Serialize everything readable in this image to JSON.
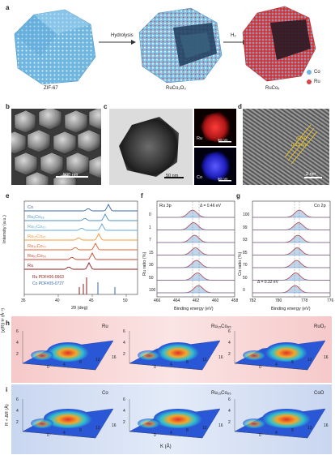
{
  "panel_letters": [
    "a",
    "b",
    "c",
    "d",
    "e",
    "f",
    "g",
    "h",
    "i"
  ],
  "panel_a": {
    "step1_label": "Hydrolysis",
    "step2_label": "H₂",
    "structures": [
      "ZIF-67",
      "RuCo₂O₃",
      "RuCoₓ"
    ],
    "legend": [
      {
        "label": "Co",
        "color": "#6fb6e0"
      },
      {
        "label": "Ru",
        "color": "#d9434a"
      }
    ]
  },
  "panel_b": {
    "scale_bar": "500 nm"
  },
  "panel_c": {
    "scale_bar": "50 nm",
    "map_labels": [
      "Ru",
      "Co"
    ],
    "map_scale_bars": [
      "50 nm",
      "50 nm"
    ]
  },
  "panel_d": {
    "lattice_label_1": "(100)",
    "lattice_label_2": "0.23 nm",
    "scale_bar": "2 nm"
  },
  "panel_e": {
    "xlabel": "2θ (deg)",
    "ylabel": "Intensity (a.u.)",
    "series_labels": [
      "Co",
      "Ru₂Co₉₈",
      "Ru₁₀Co₉₀",
      "Ru₁₅Co₈₅",
      "Ru₃₀Co₇₀",
      "Ru₅₀Co₅₀",
      "Ru"
    ],
    "series_colors": [
      "#3a6aa8",
      "#4b8fc6",
      "#62a9d8",
      "#f29a3a",
      "#e4622f",
      "#c9452c",
      "#8f1b1b"
    ],
    "pdf_labels": [
      "Ru PDF#06-0663",
      "Co PDF#05-0727"
    ],
    "xticks": [
      "35",
      "40",
      "45",
      "50"
    ]
  },
  "panel_f": {
    "title": "Ru 3p",
    "annotation": "Δ = 0.46 eV",
    "xlabel": "Binding energy (eV)",
    "ylabel": "Ru ratio (%)",
    "row_labels": [
      "0",
      "1",
      "7",
      "15",
      "30",
      "50",
      "100"
    ],
    "xticks": [
      "466",
      "464",
      "462",
      "460",
      "458"
    ]
  },
  "panel_g": {
    "title": "Co 2p",
    "annotation": "Δ = 0.32 eV",
    "xlabel": "Binding energy (eV)",
    "ylabel": "Co ratio (%)",
    "row_labels": [
      "100",
      "99",
      "93",
      "85",
      "70",
      "50",
      "0"
    ],
    "xticks": [
      "782",
      "780",
      "778",
      "776"
    ]
  },
  "panel_h": {
    "maps": [
      "Ru",
      "Ru₁₅Co₈₅",
      "RuO₂"
    ],
    "zlabel": "|χ(R)| k² (Å⁻³)",
    "ticks_a": [
      "0",
      "4",
      "8",
      "12",
      "16"
    ],
    "ticks_b": [
      "2",
      "4",
      "6"
    ]
  },
  "panel_i": {
    "maps": [
      "Co",
      "Ru₁₅Co₈₅",
      "CoO"
    ],
    "zlabel": "R + ΔR (Å)",
    "xlabel": "K (Å)",
    "ticks_a": [
      "0",
      "4",
      "8",
      "12",
      "16"
    ],
    "ticks_b": [
      "2",
      "4",
      "6"
    ]
  }
}
